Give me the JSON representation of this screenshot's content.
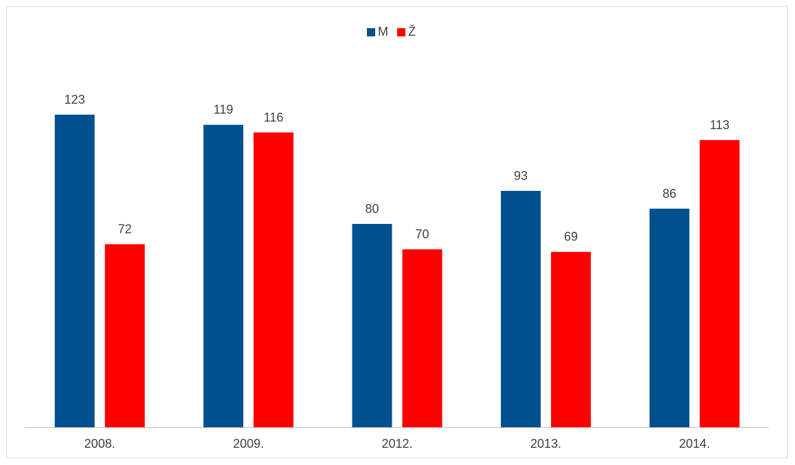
{
  "chart_data": {
    "type": "bar",
    "categories": [
      "2008.",
      "2009.",
      "2012.",
      "2013.",
      "2014."
    ],
    "series": [
      {
        "name": "M",
        "values": [
          123,
          119,
          80,
          93,
          86
        ],
        "color": "#00508f"
      },
      {
        "name": "Ž",
        "values": [
          72,
          116,
          70,
          69,
          113
        ],
        "color": "#ff0000"
      }
    ],
    "ylim": [
      0,
      125
    ],
    "grid": false,
    "legend_position": "top-center",
    "data_labels": true
  }
}
